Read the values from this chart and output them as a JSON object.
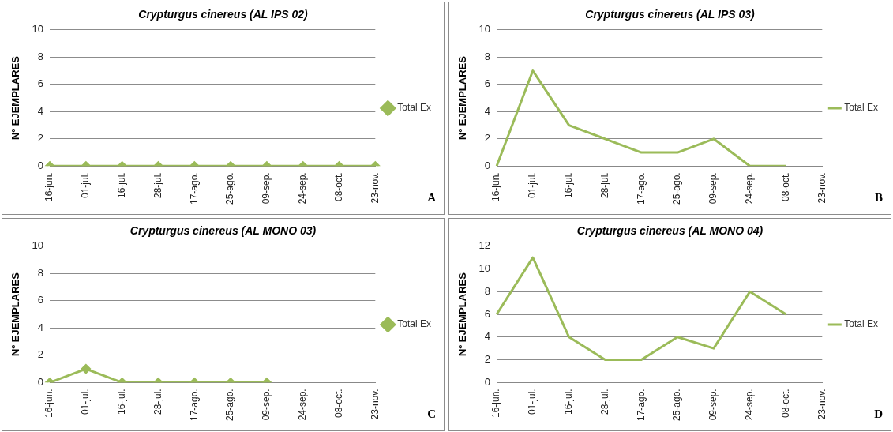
{
  "chart_data": [
    {
      "type": "line",
      "title": "Crypturgus cinereus (AL IPS 02)",
      "ylabel": "Nº EJEMPLARES",
      "categories": [
        "16-jun.",
        "01-jul.",
        "16-jul.",
        "28-jul.",
        "17-ago.",
        "25-ago.",
        "09-sep.",
        "24-sep.",
        "08-oct.",
        "23-nov."
      ],
      "series": [
        {
          "name": "Total Ex",
          "color": "#9bbb59",
          "values": [
            0,
            0,
            0,
            0,
            0,
            0,
            0,
            0,
            0,
            0
          ]
        }
      ],
      "ylim": [
        0,
        10
      ],
      "yticks": [
        0,
        2,
        4,
        6,
        8,
        10
      ],
      "grid": "y",
      "legend": "right",
      "marker": "diamond",
      "line_style": "solid",
      "annotations": [
        "A"
      ]
    },
    {
      "type": "line",
      "title": "Crypturgus cinereus (AL IPS 03)",
      "ylabel": "Nº EJEMPLARES",
      "categories": [
        "16-jun.",
        "01-jul.",
        "16-jul.",
        "28-jul.",
        "17-ago.",
        "25-ago.",
        "09-sep.",
        "24-sep.",
        "08-oct.",
        "23-nov."
      ],
      "series": [
        {
          "name": "Total Ex",
          "color": "#9bbb59",
          "values": [
            0,
            7,
            3,
            2,
            1,
            1,
            2,
            0,
            0,
            null
          ]
        }
      ],
      "ylim": [
        0,
        10
      ],
      "yticks": [
        0,
        2,
        4,
        6,
        8,
        10
      ],
      "grid": "y",
      "legend": "right",
      "marker": "none",
      "line_style": "solid",
      "annotations": [
        "B"
      ]
    },
    {
      "type": "line",
      "title": "Crypturgus cinereus (AL MONO 03)",
      "ylabel": "Nº EJEMPLARES",
      "categories": [
        "16-jun.",
        "01-jul.",
        "16-jul.",
        "28-jul.",
        "17-ago.",
        "25-ago.",
        "09-sep.",
        "24-sep.",
        "08-oct.",
        "23-nov."
      ],
      "series": [
        {
          "name": "Total Ex",
          "color": "#9bbb59",
          "values": [
            0,
            1,
            0,
            0,
            0,
            0,
            0,
            null,
            null,
            null
          ]
        }
      ],
      "ylim": [
        0,
        10
      ],
      "yticks": [
        0,
        2,
        4,
        6,
        8,
        10
      ],
      "grid": "y",
      "legend": "right",
      "marker": "diamond",
      "line_style": "solid",
      "annotations": [
        "C"
      ]
    },
    {
      "type": "line",
      "title": "Crypturgus cinereus (AL MONO 04)",
      "ylabel": "Nº EJEMPLARES",
      "categories": [
        "16-jun.",
        "01-jul.",
        "16-jul.",
        "28-jul.",
        "17-ago.",
        "25-ago.",
        "09-sep.",
        "24-sep.",
        "08-oct.",
        "23-nov."
      ],
      "series": [
        {
          "name": "Total Ex",
          "color": "#9bbb59",
          "values": [
            6,
            11,
            4,
            2,
            2,
            4,
            3,
            8,
            6,
            null
          ]
        }
      ],
      "ylim": [
        0,
        12
      ],
      "yticks": [
        0,
        2,
        4,
        6,
        8,
        10,
        12
      ],
      "grid": "y",
      "legend": "right",
      "marker": "none",
      "line_style": "solid",
      "annotations": [
        "D"
      ]
    }
  ]
}
